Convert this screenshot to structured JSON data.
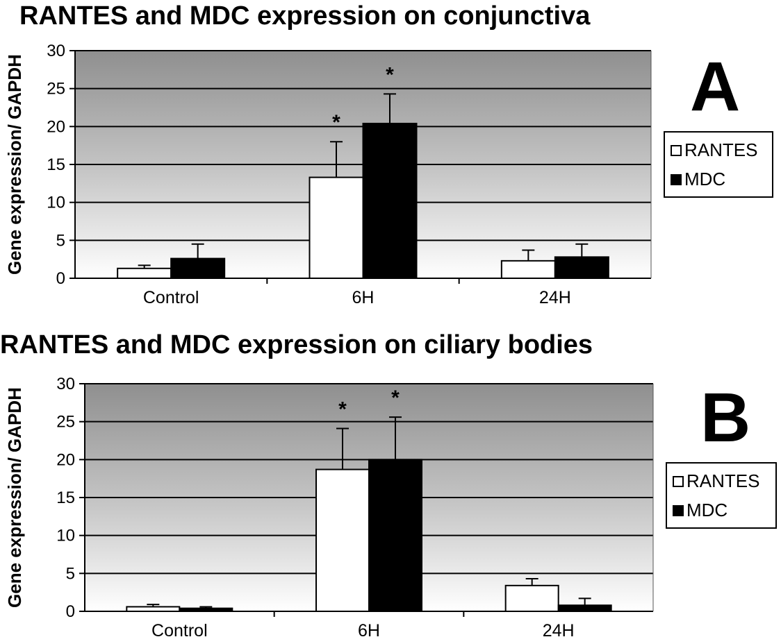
{
  "chart_data": [
    {
      "type": "bar",
      "title": "RANTES and MDC expression on conjunctiva",
      "panel_label": "A",
      "ylabel": "Gene expression/ GAPDH",
      "xlabel": "",
      "ylim": [
        0,
        30
      ],
      "yticks": [
        "0",
        "5",
        "10",
        "15",
        "20",
        "25",
        "30"
      ],
      "categories": [
        "Control",
        "6H",
        "24H"
      ],
      "series": [
        {
          "name": "RANTES",
          "color": "#ffffff",
          "values": [
            1.3,
            13.3,
            2.3
          ],
          "errors": [
            0.4,
            4.7,
            1.4
          ]
        },
        {
          "name": "MDC",
          "color": "#000000",
          "values": [
            2.6,
            20.4,
            2.8
          ],
          "errors": [
            1.9,
            3.9,
            1.7
          ]
        }
      ],
      "significance": [
        {
          "category": "6H",
          "series": "RANTES",
          "mark": "*"
        },
        {
          "category": "6H",
          "series": "MDC",
          "mark": "*"
        }
      ],
      "grid": true,
      "legend_position": "right"
    },
    {
      "type": "bar",
      "title": "RANTES and MDC expression on ciliary bodies",
      "panel_label": "B",
      "ylabel": "Gene expression/ GAPDH",
      "xlabel": "",
      "ylim": [
        0,
        30
      ],
      "yticks": [
        "0",
        "5",
        "10",
        "15",
        "20",
        "25",
        "30"
      ],
      "categories": [
        "Control",
        "6H",
        "24H"
      ],
      "series": [
        {
          "name": "RANTES",
          "color": "#ffffff",
          "values": [
            0.6,
            18.7,
            3.4
          ],
          "errors": [
            0.3,
            5.4,
            0.9
          ]
        },
        {
          "name": "MDC",
          "color": "#000000",
          "values": [
            0.4,
            20.0,
            0.8
          ],
          "errors": [
            0.2,
            5.6,
            0.9
          ]
        }
      ],
      "significance": [
        {
          "category": "6H",
          "series": "RANTES",
          "mark": "*"
        },
        {
          "category": "6H",
          "series": "MDC",
          "mark": "*"
        }
      ],
      "grid": true,
      "legend_position": "right"
    }
  ]
}
